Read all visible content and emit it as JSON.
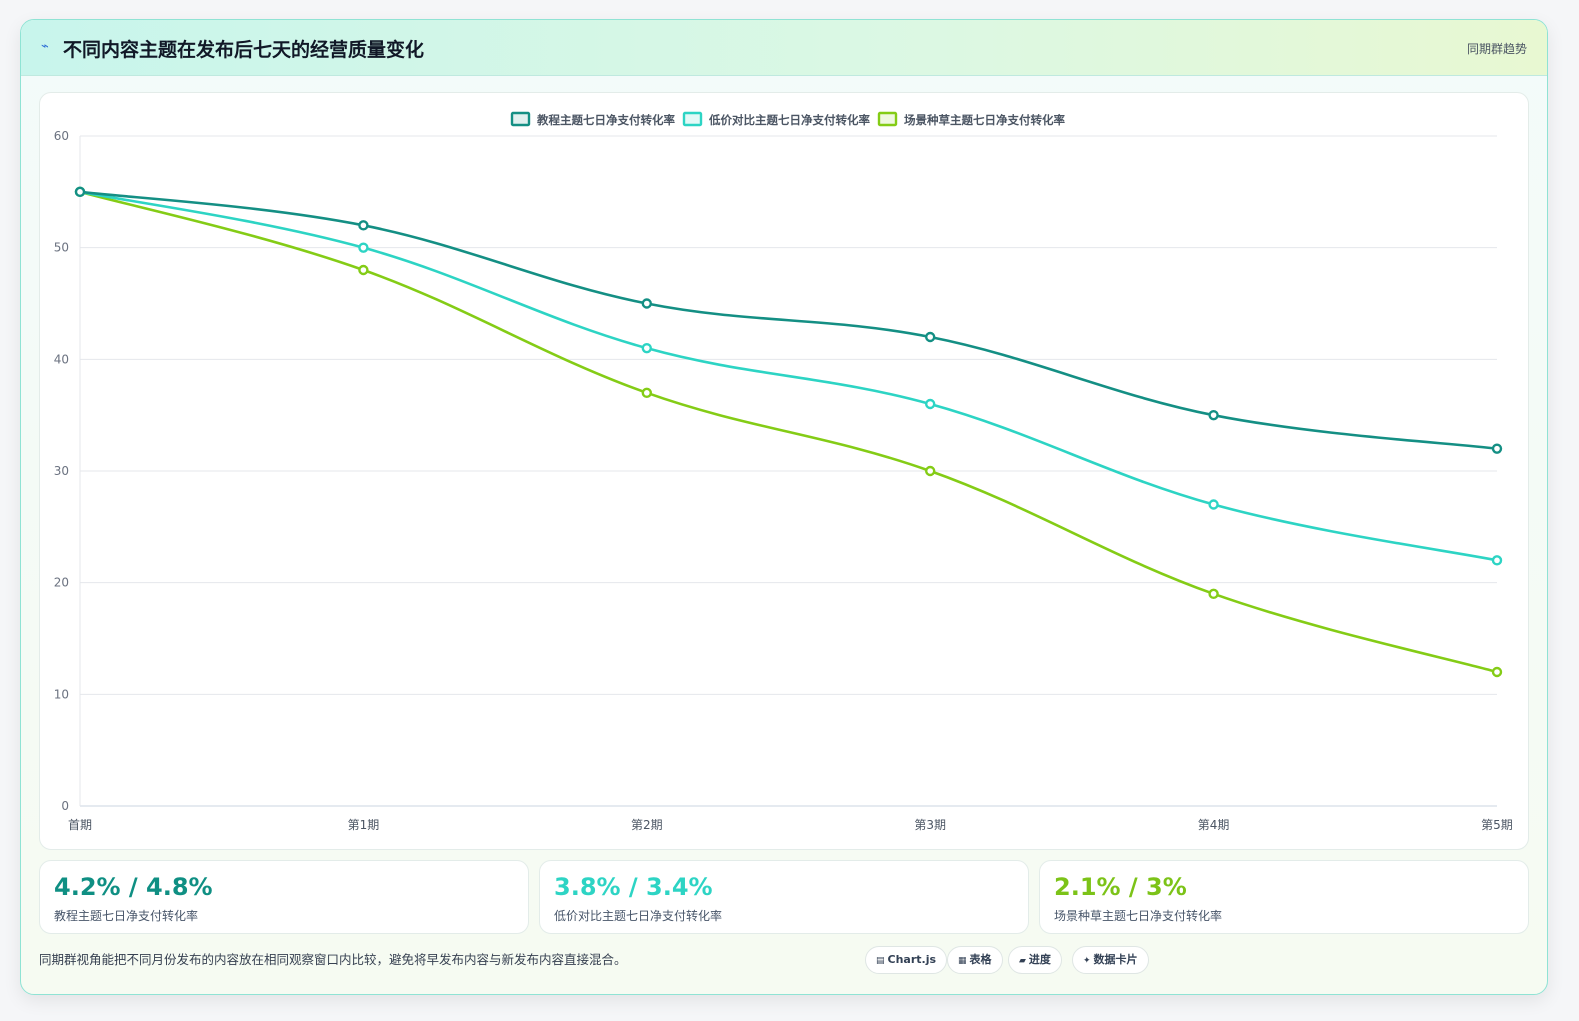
{
  "header": {
    "icon": "trend-icon",
    "title": "不同内容主题在发布后七天的经营质量变化",
    "tag": "同期群趋势"
  },
  "chart_data": {
    "type": "line",
    "categories": [
      "首期",
      "第1期",
      "第2期",
      "第3期",
      "第4期",
      "第5期"
    ],
    "ylim": [
      0,
      60
    ],
    "yticks": [
      0,
      10,
      20,
      30,
      40,
      50,
      60
    ],
    "legend_position": "top-center",
    "grid": true,
    "series": [
      {
        "name": "教程主题七日净支付转化率",
        "color": "#148f84",
        "values": [
          55,
          52,
          45,
          42,
          35,
          32
        ]
      },
      {
        "name": "低价对比主题七日净支付转化率",
        "color": "#2dd4c4",
        "values": [
          55,
          50,
          41,
          36,
          27,
          22
        ]
      },
      {
        "name": "场景种草主题七日净支付转化率",
        "color": "#84cc16",
        "values": [
          55,
          48,
          37,
          30,
          19,
          12
        ]
      }
    ]
  },
  "stats": [
    {
      "value": "4.2% / 4.8%",
      "label": "教程主题七日净支付转化率",
      "color": "#0f8f83"
    },
    {
      "value": "3.8% / 3.4%",
      "label": "低价对比主题七日净支付转化率",
      "color": "#2dd4c4"
    },
    {
      "value": "2.1% / 3%",
      "label": "场景种草主题七日净支付转化率",
      "color": "#7cc318"
    }
  ],
  "footer": {
    "note": "同期群视角能把不同月份发布的内容放在相同观察窗口内比较，避免将早发布内容与新发布内容直接混合。",
    "chips": [
      {
        "icon": "▤",
        "label": "Chart.js"
      },
      {
        "icon": "▦",
        "label": "表格"
      },
      {
        "icon": "▰",
        "label": "进度"
      },
      {
        "icon": "✦",
        "label": "数据卡片"
      }
    ]
  }
}
